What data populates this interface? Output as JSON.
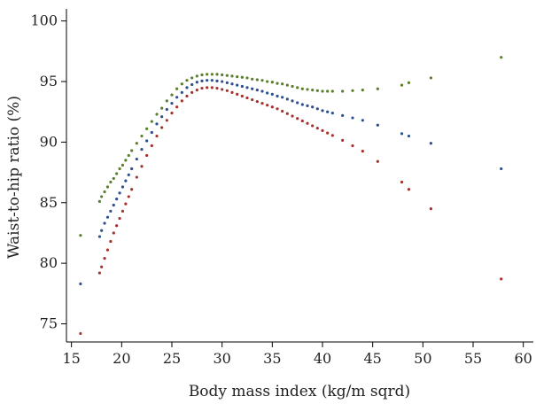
{
  "chart_data": {
    "type": "scatter",
    "xlabel": "Body mass index (kg/m sqrd)",
    "ylabel": "Waist-to-hip ratio (%)",
    "xlim": [
      14.5,
      61
    ],
    "ylim": [
      73.5,
      101
    ],
    "xticks": [
      "15",
      "20",
      "25",
      "30",
      "35",
      "40",
      "45",
      "50",
      "55",
      "60"
    ],
    "yticks": [
      "75",
      "80",
      "85",
      "90",
      "95",
      "100"
    ],
    "grid": false,
    "series": [
      {
        "color": "#5a7d2e",
        "points": [
          [
            15.9,
            82.3
          ],
          [
            17.8,
            85.1
          ],
          [
            18.0,
            85.5
          ],
          [
            18.3,
            85.9
          ],
          [
            18.6,
            86.3
          ],
          [
            18.9,
            86.7
          ],
          [
            19.2,
            87.0
          ],
          [
            19.5,
            87.4
          ],
          [
            19.8,
            87.8
          ],
          [
            20.1,
            88.1
          ],
          [
            20.4,
            88.5
          ],
          [
            20.7,
            88.9
          ],
          [
            21.0,
            89.3
          ],
          [
            21.5,
            89.9
          ],
          [
            22.0,
            90.5
          ],
          [
            22.5,
            91.1
          ],
          [
            23.0,
            91.7
          ],
          [
            23.5,
            92.3
          ],
          [
            24.0,
            92.8
          ],
          [
            24.5,
            93.4
          ],
          [
            25.0,
            93.9
          ],
          [
            25.5,
            94.4
          ],
          [
            26.0,
            94.8
          ],
          [
            26.5,
            95.1
          ],
          [
            27.0,
            95.3
          ],
          [
            27.5,
            95.45
          ],
          [
            28.0,
            95.55
          ],
          [
            28.5,
            95.6
          ],
          [
            29.0,
            95.6
          ],
          [
            29.5,
            95.6
          ],
          [
            30.0,
            95.55
          ],
          [
            30.5,
            95.5
          ],
          [
            31.0,
            95.45
          ],
          [
            31.5,
            95.4
          ],
          [
            32.0,
            95.35
          ],
          [
            32.5,
            95.3
          ],
          [
            33.0,
            95.2
          ],
          [
            33.5,
            95.15
          ],
          [
            34.0,
            95.1
          ],
          [
            34.5,
            95.0
          ],
          [
            35.0,
            94.95
          ],
          [
            35.5,
            94.85
          ],
          [
            36.0,
            94.8
          ],
          [
            36.5,
            94.7
          ],
          [
            37.0,
            94.6
          ],
          [
            37.5,
            94.5
          ],
          [
            38.0,
            94.4
          ],
          [
            38.5,
            94.35
          ],
          [
            39.0,
            94.3
          ],
          [
            39.5,
            94.25
          ],
          [
            40.0,
            94.2
          ],
          [
            40.5,
            94.2
          ],
          [
            41.0,
            94.2
          ],
          [
            42.0,
            94.2
          ],
          [
            43.0,
            94.25
          ],
          [
            44.0,
            94.3
          ],
          [
            45.5,
            94.4
          ],
          [
            47.9,
            94.7
          ],
          [
            48.6,
            94.9
          ],
          [
            50.8,
            95.3
          ],
          [
            57.8,
            97.0
          ]
        ]
      },
      {
        "color": "#2d4f8e",
        "points": [
          [
            15.9,
            78.3
          ],
          [
            17.8,
            82.2
          ],
          [
            18.0,
            82.7
          ],
          [
            18.3,
            83.3
          ],
          [
            18.6,
            83.8
          ],
          [
            18.9,
            84.3
          ],
          [
            19.2,
            84.8
          ],
          [
            19.5,
            85.3
          ],
          [
            19.8,
            85.8
          ],
          [
            20.1,
            86.3
          ],
          [
            20.4,
            86.8
          ],
          [
            20.7,
            87.3
          ],
          [
            21.0,
            87.8
          ],
          [
            21.5,
            88.6
          ],
          [
            22.0,
            89.4
          ],
          [
            22.5,
            90.1
          ],
          [
            23.0,
            90.8
          ],
          [
            23.5,
            91.5
          ],
          [
            24.0,
            92.1
          ],
          [
            24.5,
            92.7
          ],
          [
            25.0,
            93.2
          ],
          [
            25.5,
            93.7
          ],
          [
            26.0,
            94.1
          ],
          [
            26.5,
            94.5
          ],
          [
            27.0,
            94.75
          ],
          [
            27.5,
            94.95
          ],
          [
            28.0,
            95.05
          ],
          [
            28.5,
            95.1
          ],
          [
            29.0,
            95.1
          ],
          [
            29.5,
            95.05
          ],
          [
            30.0,
            95.0
          ],
          [
            30.5,
            94.9
          ],
          [
            31.0,
            94.8
          ],
          [
            31.5,
            94.7
          ],
          [
            32.0,
            94.6
          ],
          [
            32.5,
            94.5
          ],
          [
            33.0,
            94.4
          ],
          [
            33.5,
            94.3
          ],
          [
            34.0,
            94.2
          ],
          [
            34.5,
            94.05
          ],
          [
            35.0,
            93.95
          ],
          [
            35.5,
            93.8
          ],
          [
            36.0,
            93.7
          ],
          [
            36.5,
            93.55
          ],
          [
            37.0,
            93.4
          ],
          [
            37.5,
            93.25
          ],
          [
            38.0,
            93.1
          ],
          [
            38.5,
            93.0
          ],
          [
            39.0,
            92.9
          ],
          [
            39.5,
            92.75
          ],
          [
            40.0,
            92.6
          ],
          [
            40.5,
            92.5
          ],
          [
            41.0,
            92.4
          ],
          [
            42.0,
            92.2
          ],
          [
            43.0,
            92.0
          ],
          [
            44.0,
            91.8
          ],
          [
            45.5,
            91.4
          ],
          [
            47.9,
            90.7
          ],
          [
            48.6,
            90.5
          ],
          [
            50.8,
            89.9
          ],
          [
            57.8,
            87.8
          ]
        ]
      },
      {
        "color": "#a6322d",
        "points": [
          [
            15.9,
            74.2
          ],
          [
            17.8,
            79.2
          ],
          [
            18.0,
            79.7
          ],
          [
            18.3,
            80.4
          ],
          [
            18.6,
            81.1
          ],
          [
            18.9,
            81.8
          ],
          [
            19.2,
            82.5
          ],
          [
            19.5,
            83.1
          ],
          [
            19.8,
            83.7
          ],
          [
            20.1,
            84.3
          ],
          [
            20.4,
            84.9
          ],
          [
            20.7,
            85.5
          ],
          [
            21.0,
            86.1
          ],
          [
            21.5,
            87.1
          ],
          [
            22.0,
            88.0
          ],
          [
            22.5,
            88.9
          ],
          [
            23.0,
            89.7
          ],
          [
            23.5,
            90.5
          ],
          [
            24.0,
            91.2
          ],
          [
            24.5,
            91.8
          ],
          [
            25.0,
            92.4
          ],
          [
            25.5,
            92.9
          ],
          [
            26.0,
            93.4
          ],
          [
            26.5,
            93.8
          ],
          [
            27.0,
            94.1
          ],
          [
            27.5,
            94.3
          ],
          [
            28.0,
            94.45
          ],
          [
            28.5,
            94.5
          ],
          [
            29.0,
            94.5
          ],
          [
            29.5,
            94.45
          ],
          [
            30.0,
            94.35
          ],
          [
            30.5,
            94.25
          ],
          [
            31.0,
            94.1
          ],
          [
            31.5,
            93.95
          ],
          [
            32.0,
            93.8
          ],
          [
            32.5,
            93.65
          ],
          [
            33.0,
            93.5
          ],
          [
            33.5,
            93.35
          ],
          [
            34.0,
            93.2
          ],
          [
            34.5,
            93.05
          ],
          [
            35.0,
            92.9
          ],
          [
            35.5,
            92.75
          ],
          [
            36.0,
            92.55
          ],
          [
            36.5,
            92.35
          ],
          [
            37.0,
            92.15
          ],
          [
            37.5,
            91.95
          ],
          [
            38.0,
            91.75
          ],
          [
            38.5,
            91.55
          ],
          [
            39.0,
            91.35
          ],
          [
            39.5,
            91.15
          ],
          [
            40.0,
            90.95
          ],
          [
            40.5,
            90.75
          ],
          [
            41.0,
            90.55
          ],
          [
            42.0,
            90.15
          ],
          [
            43.0,
            89.7
          ],
          [
            44.0,
            89.25
          ],
          [
            45.5,
            88.4
          ],
          [
            47.9,
            86.7
          ],
          [
            48.6,
            86.1
          ],
          [
            50.8,
            84.5
          ],
          [
            57.8,
            78.7
          ]
        ]
      }
    ]
  }
}
